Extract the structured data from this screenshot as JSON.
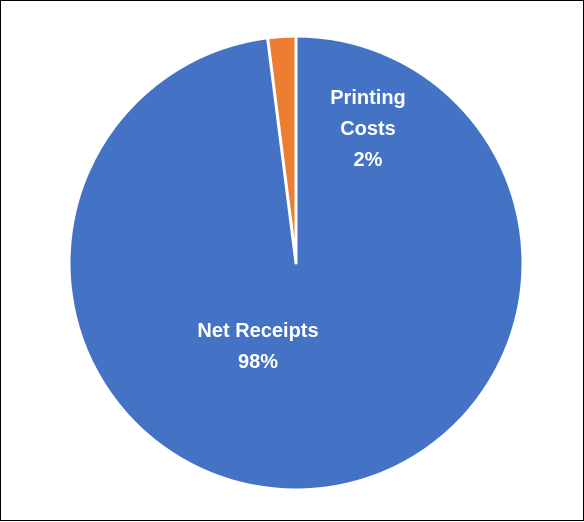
{
  "chart_data": {
    "type": "pie",
    "title": "",
    "slices": [
      {
        "name": "Printing Costs",
        "value": 2,
        "percent_label": "2%",
        "color": "#ED7D31"
      },
      {
        "name": "Net Receipts",
        "value": 98,
        "percent_label": "98%",
        "color": "#4472C4"
      }
    ],
    "legend": "none",
    "labels_position": "inside",
    "slice_border_color": "#ffffff",
    "start_angle": "12 o'clock, clockwise"
  }
}
